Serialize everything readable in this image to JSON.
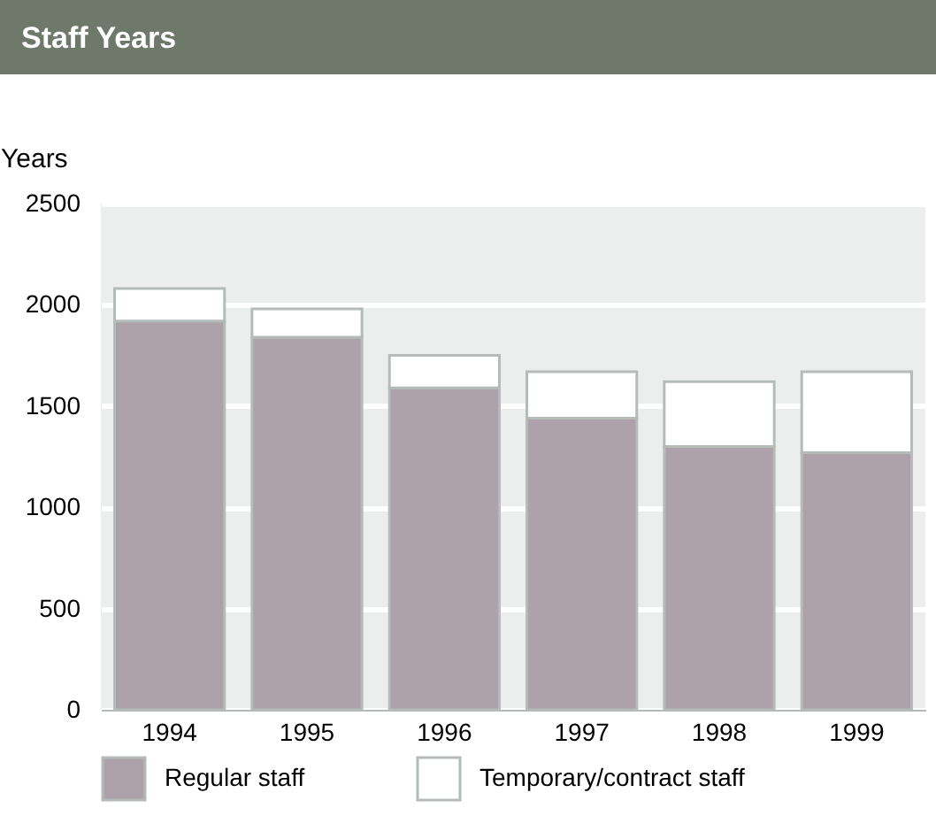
{
  "chart_data": {
    "type": "bar",
    "title": "Staff Years",
    "ylabel": "Years",
    "categories": [
      "1994",
      "1995",
      "1996",
      "1997",
      "1998",
      "1999"
    ],
    "stacked": true,
    "series": [
      {
        "name": "Regular staff",
        "color": "#ada1aa",
        "values": [
          1920,
          1840,
          1590,
          1440,
          1300,
          1270
        ]
      },
      {
        "name": "Temporary/contract staff",
        "color": "#ffffff",
        "values": [
          160,
          140,
          160,
          230,
          320,
          400
        ]
      }
    ],
    "ylim": [
      0,
      2500
    ],
    "yticks": [
      0,
      500,
      1000,
      1500,
      2000,
      2500
    ],
    "grid": "y",
    "legend": "bottom"
  }
}
